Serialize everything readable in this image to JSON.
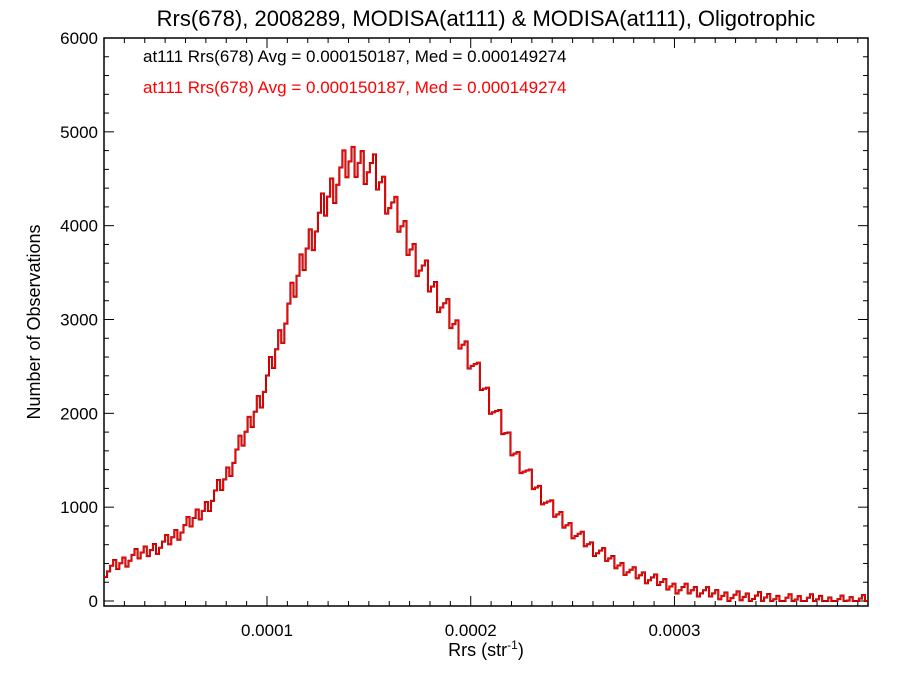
{
  "chart_data": {
    "type": "histogram",
    "title": "Rrs(678), 2008289, MODISA(at111) & MODISA(at111), Oligotrophic",
    "xlabel": "Rrs (str",
    "xlabel_sup": "-1",
    "xlabel_close": ")",
    "ylabel": "Number of Observations",
    "xlim": [
      2e-05,
      0.000395
    ],
    "ylim": [
      0,
      6000
    ],
    "xticks": [
      0.0001,
      0.0002,
      0.0003
    ],
    "xtick_labels": [
      "0.0001",
      "0.0002",
      "0.0003"
    ],
    "yticks": [
      0,
      1000,
      2000,
      3000,
      4000,
      5000,
      6000
    ],
    "ytick_labels": [
      "0",
      "1000",
      "2000",
      "3000",
      "4000",
      "5000",
      "6000"
    ],
    "grid": false,
    "legend_position": "top-left",
    "colors": {
      "series1": "#000000",
      "series2": "#ff0000"
    },
    "legend": [
      "at111 Rrs(678) Avg = 0.000150187, Med = 0.000149274",
      "at111 Rrs(678) Avg = 0.000150187, Med = 0.000149274"
    ],
    "series": [
      {
        "color": "#000000",
        "x": [
          2e-05,
          3e-05,
          4e-05,
          5e-05,
          6e-05,
          7e-05,
          8e-05,
          9e-05,
          0.0001,
          0.00011,
          0.00012,
          0.00013,
          0.000135,
          0.00014,
          0.000145,
          0.00015,
          0.000155,
          0.00016,
          0.00017,
          0.00018,
          0.00019,
          0.0002,
          0.00021,
          0.00022,
          0.00023,
          0.00024,
          0.00025,
          0.00026,
          0.00027,
          0.00028,
          0.00029,
          0.0003,
          0.00031,
          0.00032,
          0.00033,
          0.00034,
          0.00035,
          0.00036,
          0.00037,
          0.00038,
          0.00039
        ],
        "y": [
          320,
          420,
          520,
          620,
          780,
          1000,
          1320,
          1800,
          2350,
          3050,
          3800,
          4300,
          4500,
          4650,
          4700,
          4650,
          4500,
          4250,
          3800,
          3400,
          3000,
          2600,
          2100,
          1650,
          1280,
          970,
          760,
          560,
          420,
          300,
          220,
          150,
          110,
          70,
          50,
          35,
          25,
          15,
          10,
          5,
          3
        ]
      },
      {
        "color": "#ff0000",
        "x": [
          2e-05,
          3e-05,
          4e-05,
          5e-05,
          6e-05,
          7e-05,
          8e-05,
          9e-05,
          0.0001,
          0.00011,
          0.00012,
          0.00013,
          0.000135,
          0.00014,
          0.000145,
          0.00015,
          0.000155,
          0.00016,
          0.00017,
          0.00018,
          0.00019,
          0.0002,
          0.00021,
          0.00022,
          0.00023,
          0.00024,
          0.00025,
          0.00026,
          0.00027,
          0.00028,
          0.00029,
          0.0003,
          0.00031,
          0.00032,
          0.00033,
          0.00034,
          0.00035,
          0.00036,
          0.00037,
          0.00038,
          0.00039
        ],
        "y": [
          320,
          420,
          520,
          620,
          780,
          1000,
          1320,
          1800,
          2350,
          3050,
          3800,
          4300,
          4500,
          4650,
          4700,
          4650,
          4500,
          4250,
          3800,
          3400,
          3000,
          2600,
          2100,
          1650,
          1280,
          970,
          760,
          560,
          420,
          300,
          220,
          150,
          110,
          70,
          50,
          35,
          25,
          15,
          10,
          5,
          3
        ]
      }
    ]
  }
}
